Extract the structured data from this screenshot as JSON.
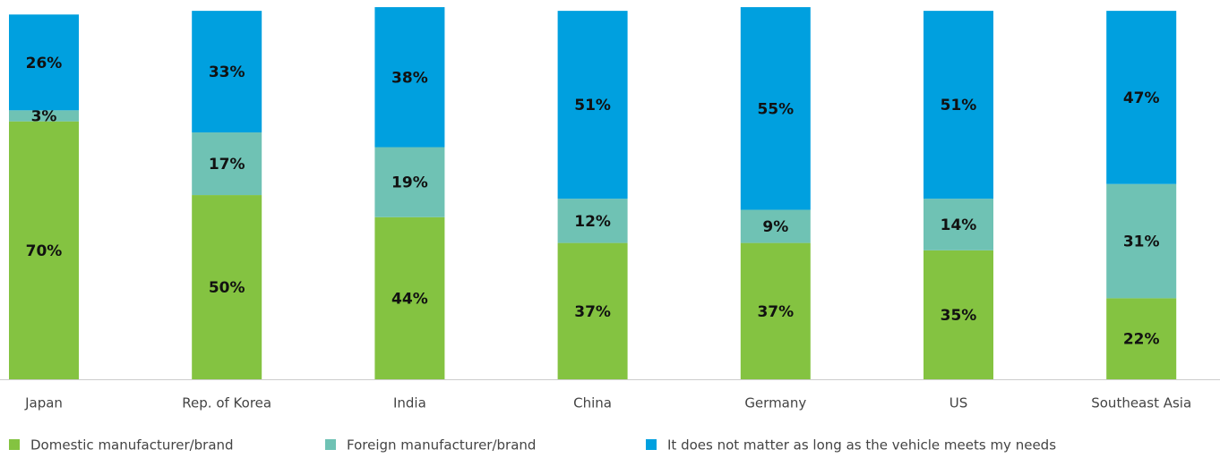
{
  "chart_data": {
    "type": "stacked_bar",
    "categories": [
      "Japan",
      "Rep. of Korea",
      "India",
      "China",
      "Germany",
      "US",
      "Southeast Asia"
    ],
    "series": [
      {
        "name": "Domestic manufacturer/brand",
        "color": "#84c341",
        "values": [
          70,
          50,
          44,
          37,
          37,
          35,
          22
        ],
        "value_labels": [
          "70%",
          "50%",
          "44%",
          "37%",
          "37%",
          "35%",
          "22%"
        ]
      },
      {
        "name": "Foreign manufacturer/brand",
        "color": "#6fc2b4",
        "values": [
          3,
          17,
          19,
          12,
          9,
          14,
          31
        ],
        "value_labels": [
          "3%",
          "17%",
          "19%",
          "12%",
          "9%",
          "14%",
          "31%"
        ]
      },
      {
        "name": "It does not matter as long as the vehicle meets my needs",
        "color": "#00a0df",
        "values": [
          26,
          33,
          38,
          51,
          55,
          51,
          47
        ],
        "value_labels": [
          "26%",
          "33%",
          "38%",
          "51%",
          "55%",
          "51%",
          "47%"
        ]
      }
    ],
    "ylim": [
      0,
      101
    ]
  }
}
